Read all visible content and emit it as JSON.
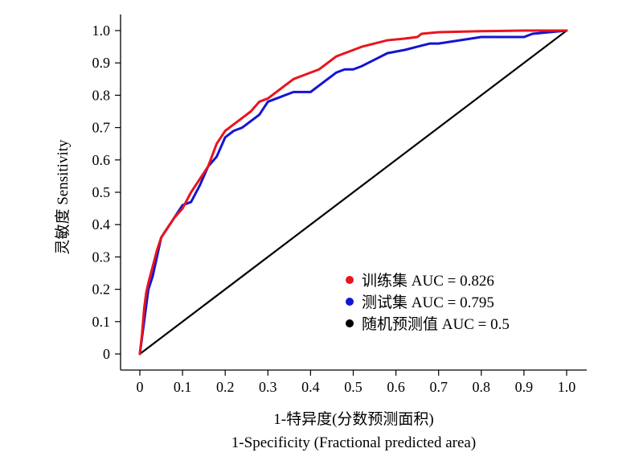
{
  "chart_data": {
    "type": "line",
    "xlabel": "1-特异度(分数预测面积)",
    "xlabel_en": "1-Specificity (Fractional predicted area)",
    "ylabel": "灵敏度 Sensitivity",
    "xlim": [
      0,
      1.0
    ],
    "ylim": [
      0,
      1.0
    ],
    "x_ticks": [
      "0",
      "0.1",
      "0.2",
      "0.3",
      "0.4",
      "0.5",
      "0.6",
      "0.7",
      "0.8",
      "0.9",
      "1.0"
    ],
    "y_ticks": [
      "0",
      "0.1",
      "0.2",
      "0.3",
      "0.4",
      "0.5",
      "0.6",
      "0.7",
      "0.8",
      "0.9",
      "1.0"
    ],
    "grid": false,
    "legend_position": "bottom-right",
    "series": [
      {
        "name": "训练集 AUC = 0.826",
        "color": "#e8141e",
        "x": [
          0,
          0.005,
          0.01,
          0.015,
          0.02,
          0.03,
          0.04,
          0.05,
          0.06,
          0.08,
          0.1,
          0.12,
          0.14,
          0.16,
          0.18,
          0.2,
          0.22,
          0.24,
          0.26,
          0.28,
          0.3,
          0.32,
          0.34,
          0.36,
          0.38,
          0.4,
          0.42,
          0.44,
          0.46,
          0.48,
          0.5,
          0.52,
          0.55,
          0.58,
          0.62,
          0.65,
          0.66,
          0.7,
          0.8,
          0.9,
          1.0
        ],
        "y": [
          0,
          0.06,
          0.14,
          0.19,
          0.22,
          0.27,
          0.32,
          0.36,
          0.38,
          0.42,
          0.45,
          0.5,
          0.54,
          0.58,
          0.65,
          0.69,
          0.71,
          0.73,
          0.75,
          0.78,
          0.79,
          0.81,
          0.83,
          0.85,
          0.86,
          0.87,
          0.88,
          0.9,
          0.92,
          0.93,
          0.94,
          0.95,
          0.96,
          0.97,
          0.975,
          0.98,
          0.99,
          0.995,
          0.998,
          1.0,
          1.0
        ]
      },
      {
        "name": "测试集 AUC = 0.795",
        "color": "#1414d2",
        "x": [
          0,
          0.005,
          0.01,
          0.02,
          0.03,
          0.04,
          0.05,
          0.06,
          0.08,
          0.1,
          0.12,
          0.14,
          0.16,
          0.18,
          0.2,
          0.22,
          0.24,
          0.26,
          0.28,
          0.3,
          0.32,
          0.34,
          0.36,
          0.38,
          0.4,
          0.42,
          0.44,
          0.46,
          0.48,
          0.5,
          0.52,
          0.55,
          0.58,
          0.62,
          0.65,
          0.68,
          0.7,
          0.8,
          0.9,
          0.92,
          1.0
        ],
        "y": [
          0,
          0.05,
          0.1,
          0.2,
          0.24,
          0.3,
          0.36,
          0.38,
          0.42,
          0.46,
          0.47,
          0.52,
          0.58,
          0.61,
          0.67,
          0.69,
          0.7,
          0.72,
          0.74,
          0.78,
          0.79,
          0.8,
          0.81,
          0.81,
          0.81,
          0.83,
          0.85,
          0.87,
          0.88,
          0.88,
          0.89,
          0.91,
          0.93,
          0.94,
          0.95,
          0.96,
          0.96,
          0.98,
          0.98,
          0.99,
          1.0
        ]
      },
      {
        "name": "随机预测值 AUC = 0.5",
        "color": "#000000",
        "x": [
          0,
          1.0
        ],
        "y": [
          0,
          1.0
        ]
      }
    ]
  }
}
